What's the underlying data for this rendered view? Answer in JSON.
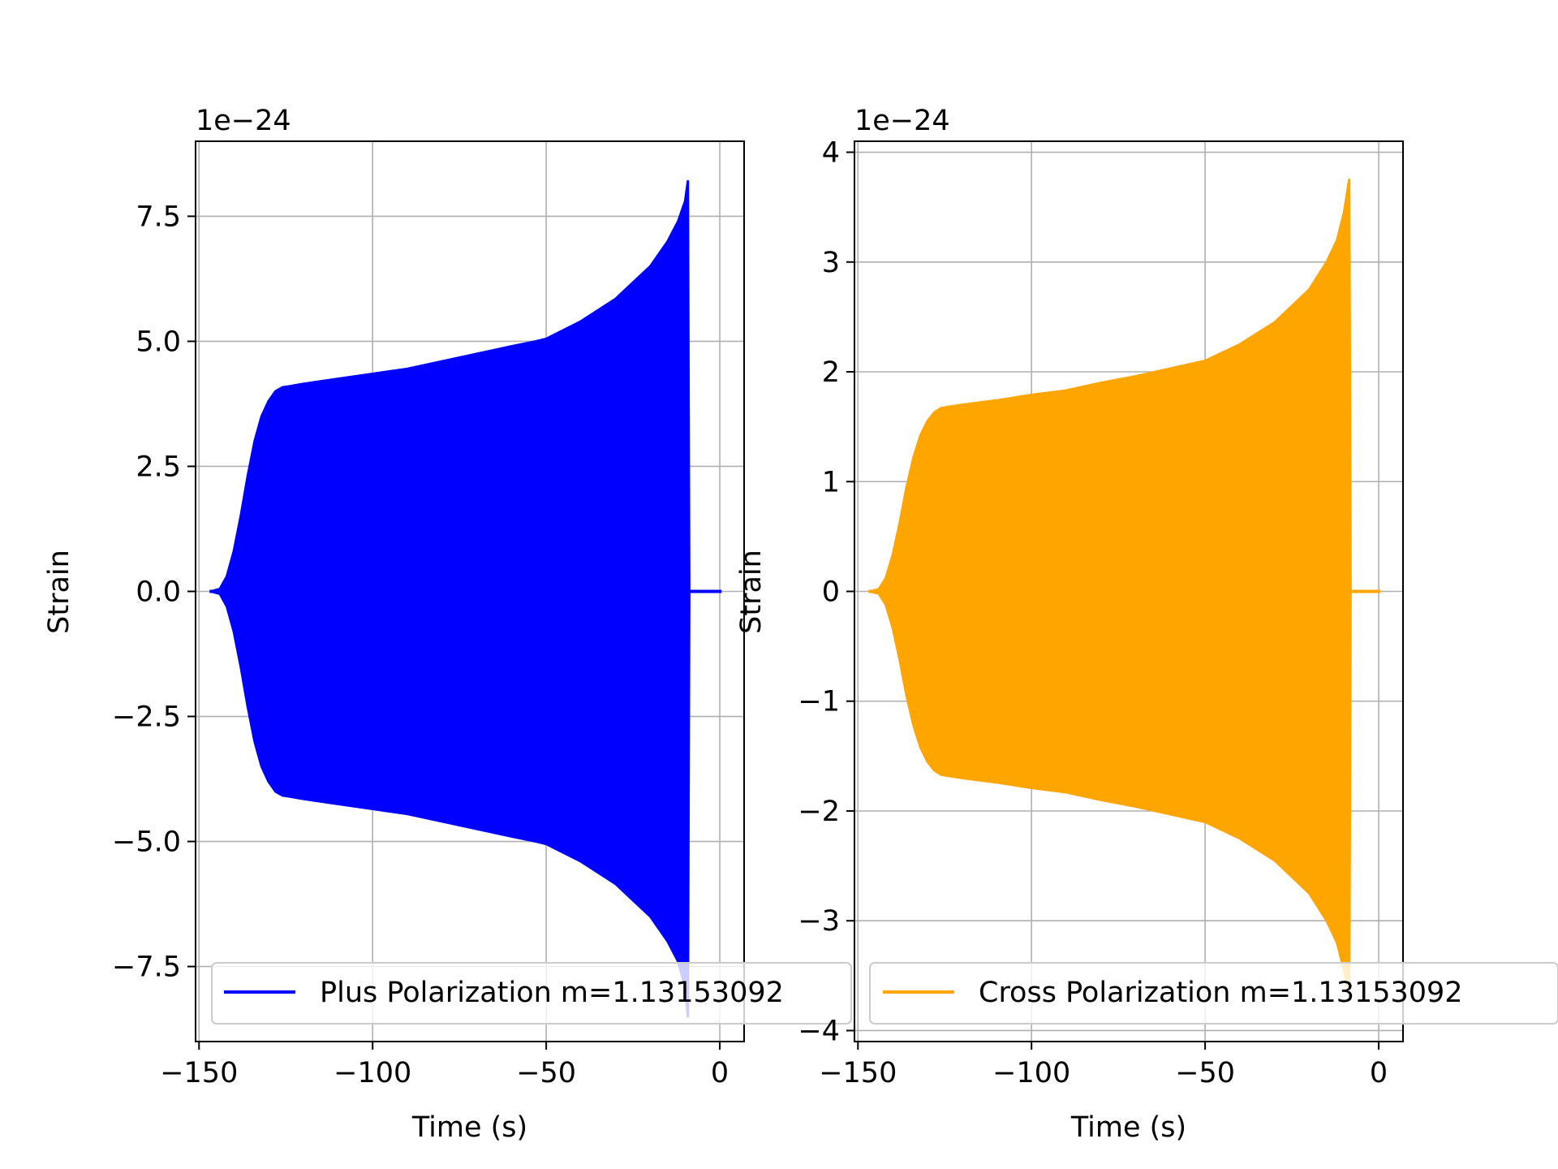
{
  "chart_data": [
    {
      "type": "line",
      "xlabel": "Time (s)",
      "ylabel": "Strain",
      "offset_text": "1e−24",
      "y_scale_exponent": -24,
      "xlim": [
        -151,
        7
      ],
      "ylim": [
        -9.0,
        9.0
      ],
      "xticks": [
        -150,
        -100,
        -50,
        0
      ],
      "xtick_labels": [
        "−150",
        "−100",
        "−50",
        "0"
      ],
      "yticks": [
        -7.5,
        -5.0,
        -2.5,
        0.0,
        2.5,
        5.0,
        7.5
      ],
      "ytick_labels": [
        "−7.5",
        "−5.0",
        "−2.5",
        "0.0",
        "2.5",
        "5.0",
        "7.5"
      ],
      "grid": true,
      "legend_location": "lower-left",
      "series": [
        {
          "name": "Plus Polarization m=1.13153092",
          "color": "#0000ff",
          "envelope_x": [
            -146.5,
            -144,
            -142,
            -140,
            -138,
            -136,
            -134,
            -132,
            -130,
            -128,
            -126,
            -124,
            -120,
            -110,
            -100,
            -95,
            -90,
            -80,
            -70,
            -60,
            -53,
            -50,
            -40,
            -30,
            -20,
            -15,
            -12,
            -10,
            -9.2
          ],
          "envelope_upper": [
            0.0,
            0.05,
            0.3,
            0.8,
            1.5,
            2.3,
            3.0,
            3.5,
            3.8,
            4.0,
            4.08,
            4.1,
            4.15,
            4.25,
            4.35,
            4.4,
            4.45,
            4.6,
            4.75,
            4.9,
            5.0,
            5.05,
            5.4,
            5.85,
            6.5,
            7.0,
            7.4,
            7.8,
            8.2
          ],
          "envelope_lower": [
            0.0,
            -0.05,
            -0.3,
            -0.8,
            -1.5,
            -2.3,
            -3.0,
            -3.5,
            -3.8,
            -4.0,
            -4.08,
            -4.1,
            -4.15,
            -4.25,
            -4.35,
            -4.4,
            -4.45,
            -4.6,
            -4.75,
            -4.9,
            -5.0,
            -5.05,
            -5.4,
            -5.85,
            -6.5,
            -7.0,
            -7.4,
            -7.9,
            -8.5
          ],
          "ringdown_end_x": 0.5
        }
      ]
    },
    {
      "type": "line",
      "xlabel": "Time (s)",
      "ylabel": "Strain",
      "offset_text": "1e−24",
      "y_scale_exponent": -24,
      "xlim": [
        -151,
        7
      ],
      "ylim": [
        -4.1,
        4.1
      ],
      "xticks": [
        -150,
        -100,
        -50,
        0
      ],
      "xtick_labels": [
        "−150",
        "−100",
        "−50",
        "0"
      ],
      "yticks": [
        -4,
        -3,
        -2,
        -1,
        0,
        1,
        2,
        3,
        4
      ],
      "ytick_labels": [
        "−4",
        "−3",
        "−2",
        "−1",
        "0",
        "1",
        "2",
        "3",
        "4"
      ],
      "grid": true,
      "legend_location": "lower-left",
      "series": [
        {
          "name": "Cross Polarization m=1.13153092",
          "color": "#ffa500",
          "envelope_x": [
            -146.5,
            -144,
            -142,
            -140,
            -138,
            -136,
            -134,
            -132,
            -130,
            -128,
            -126,
            -124,
            -120,
            -110,
            -100,
            -95,
            -90,
            -80,
            -70,
            -60,
            -53,
            -50,
            -40,
            -30,
            -20,
            -15,
            -12,
            -10,
            -8.5
          ],
          "envelope_upper": [
            0.0,
            0.02,
            0.12,
            0.33,
            0.62,
            0.95,
            1.22,
            1.42,
            1.55,
            1.63,
            1.67,
            1.68,
            1.7,
            1.74,
            1.79,
            1.81,
            1.83,
            1.9,
            1.96,
            2.03,
            2.08,
            2.1,
            2.25,
            2.45,
            2.75,
            3.0,
            3.2,
            3.45,
            3.75
          ],
          "envelope_lower": [
            0.0,
            -0.02,
            -0.12,
            -0.33,
            -0.62,
            -0.95,
            -1.22,
            -1.42,
            -1.55,
            -1.63,
            -1.67,
            -1.68,
            -1.7,
            -1.74,
            -1.79,
            -1.81,
            -1.83,
            -1.9,
            -1.96,
            -2.03,
            -2.08,
            -2.1,
            -2.25,
            -2.45,
            -2.75,
            -3.0,
            -3.2,
            -3.45,
            -3.7
          ],
          "ringdown_end_x": 0.5
        }
      ]
    }
  ]
}
